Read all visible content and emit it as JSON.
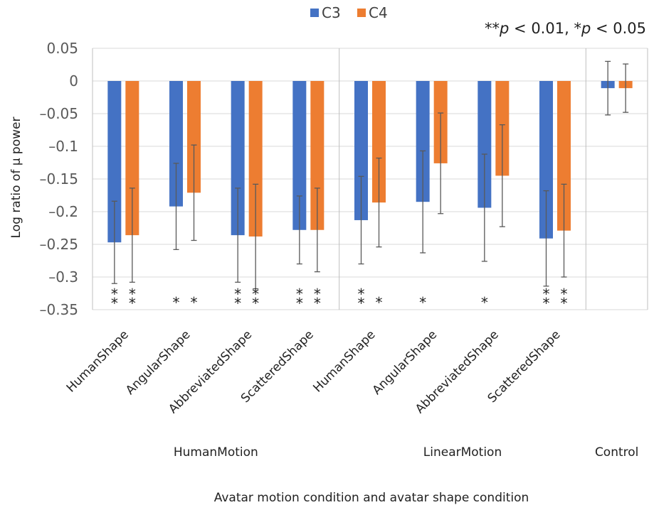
{
  "chart_data": {
    "type": "bar",
    "title": "",
    "ylabel": "Log ratio of μ power",
    "xlabel": "Avatar motion condition and avatar shape condition",
    "ylim": [
      -0.35,
      0.05
    ],
    "yticks": [
      "0.05",
      "0",
      "–0.05",
      "–0.1",
      "–0.15",
      "–0.2",
      "–0.25",
      "–0.3",
      "–0.35"
    ],
    "ytick_values": [
      0.05,
      0,
      -0.05,
      -0.1,
      -0.15,
      -0.2,
      -0.25,
      -0.3,
      -0.35
    ],
    "grid": true,
    "legend": {
      "placement": "top-center",
      "entries": [
        "C3",
        "C4"
      ]
    },
    "significance_note": {
      "p1": "**",
      "p1_var": "p",
      "p1_rest": " < 0.01, ",
      "p2": "*",
      "p2_var": "p",
      "p2_rest": " < 0.05"
    },
    "groups": [
      {
        "label": "HumanMotion",
        "categories": [
          "HumanShape",
          "AngularShape",
          "AbbreviatedShape",
          "ScatteredShape"
        ]
      },
      {
        "label": "LinearMotion",
        "categories": [
          "HumanShape",
          "AngularShape",
          "AbbreviatedShape",
          "ScatteredShape"
        ]
      },
      {
        "label": "Control",
        "categories": [
          ""
        ]
      }
    ],
    "series": [
      {
        "name": "C3",
        "color": "#4472C4",
        "values": [
          -0.247,
          -0.192,
          -0.236,
          -0.228,
          -0.213,
          -0.185,
          -0.194,
          -0.241,
          -0.011
        ],
        "error": [
          0.063,
          0.066,
          0.072,
          0.052,
          0.067,
          0.078,
          0.082,
          0.073,
          0.041
        ],
        "significance": [
          "**",
          "*",
          "**",
          "**",
          "**",
          "*",
          "*",
          "**",
          ""
        ]
      },
      {
        "name": "C4",
        "color": "#ED7D31",
        "values": [
          -0.236,
          -0.171,
          -0.238,
          -0.228,
          -0.186,
          -0.126,
          -0.145,
          -0.229,
          -0.011
        ],
        "error": [
          0.072,
          0.073,
          0.08,
          0.064,
          0.068,
          0.077,
          0.078,
          0.071,
          0.037
        ],
        "significance": [
          "**",
          "*",
          "**",
          "**",
          "*",
          "",
          "",
          "**",
          ""
        ]
      }
    ]
  }
}
